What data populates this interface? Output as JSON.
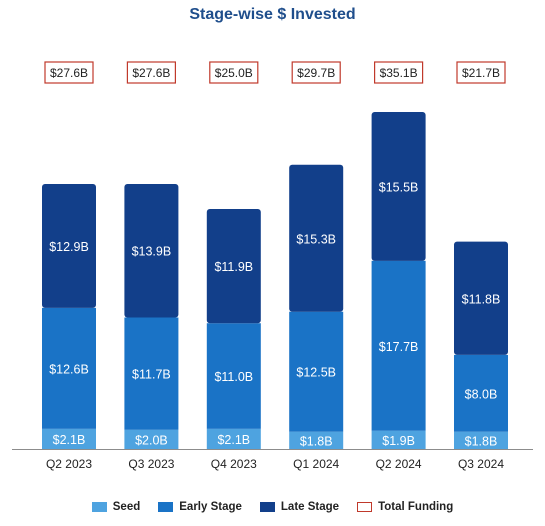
{
  "chart_data": {
    "type": "bar",
    "stacked": true,
    "title": "Stage-wise $ Invested",
    "categories": [
      "Q2 2023",
      "Q3 2023",
      "Q4 2023",
      "Q1 2024",
      "Q2 2024",
      "Q3 2024"
    ],
    "series": [
      {
        "name": "Seed",
        "color": "#4ea3e0",
        "values": [
          2.1,
          2.0,
          2.1,
          1.8,
          1.9,
          1.8
        ],
        "labels": [
          "$2.1B",
          "$2.0B",
          "$2.1B",
          "$1.8B",
          "$1.9B",
          "$1.8B"
        ]
      },
      {
        "name": "Early Stage",
        "color": "#1a73c6",
        "values": [
          12.6,
          11.7,
          11.0,
          12.5,
          17.7,
          8.0
        ],
        "labels": [
          "$12.6B",
          "$11.7B",
          "$11.0B",
          "$12.5B",
          "$17.7B",
          "$8.0B"
        ]
      },
      {
        "name": "Late Stage",
        "color": "#123f8a",
        "values": [
          12.9,
          13.9,
          11.9,
          15.3,
          15.5,
          11.8
        ],
        "labels": [
          "$12.9B",
          "$13.9B",
          "$11.9B",
          "$15.3B",
          "$15.5B",
          "$11.8B"
        ]
      }
    ],
    "totals": {
      "name": "Total Funding",
      "values": [
        27.6,
        27.6,
        25.0,
        29.7,
        35.1,
        21.7
      ],
      "labels": [
        "$27.6B",
        "$27.6B",
        "$25.0B",
        "$29.7B",
        "$35.1B",
        "$21.7B"
      ],
      "border_color": "#c0392b"
    },
    "legend_position": "bottom",
    "grid": false,
    "xlabel": "",
    "ylabel": ""
  }
}
